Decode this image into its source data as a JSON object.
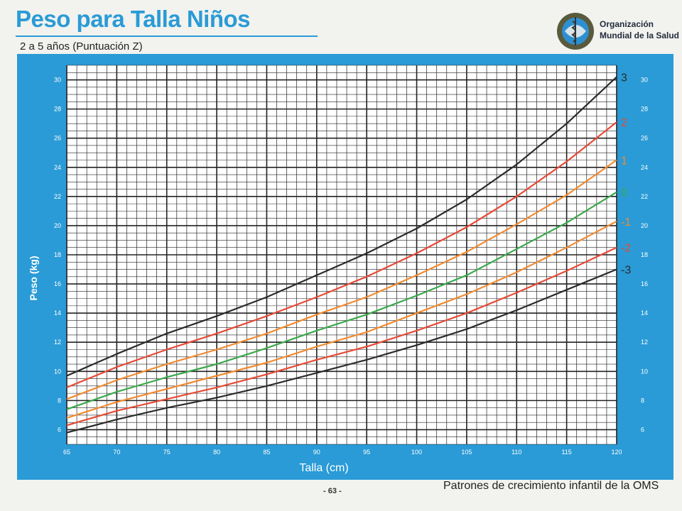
{
  "header": {
    "title": "Peso para Talla Niños",
    "subtitle": "2 a 5 años (Puntuación Z)"
  },
  "organization": {
    "name_line1": "Organización",
    "name_line2": "Mundial de la Salud",
    "emblem_icon": "who-emblem-icon"
  },
  "footer": {
    "page": "- 63 -",
    "source": "Patrones de crecimiento infantil de la OMS"
  },
  "colors": {
    "frame": "#2a9bd6",
    "grid_bg": "#ffffff",
    "grid": "#222222",
    "z3": "#2b2b2b",
    "z2": "#e64a35",
    "z1": "#f28a2e",
    "z0": "#3aa84b"
  },
  "chart_data": {
    "type": "line",
    "xlabel": "Talla (cm)",
    "ylabel": "Peso (kg)",
    "xlim": [
      65,
      120
    ],
    "ylim": [
      5,
      31
    ],
    "x_ticks": [
      65,
      70,
      75,
      80,
      85,
      90,
      95,
      100,
      105,
      110,
      115,
      120
    ],
    "y_ticks": [
      6,
      8,
      10,
      12,
      14,
      16,
      18,
      20,
      22,
      24,
      26,
      28,
      30
    ],
    "grid": true,
    "legend": "right",
    "x": [
      65,
      70,
      75,
      80,
      85,
      90,
      95,
      100,
      105,
      110,
      115,
      120
    ],
    "series": [
      {
        "name": "3",
        "color": "#2b2b2b",
        "values": [
          9.7,
          11.2,
          12.6,
          13.8,
          15.1,
          16.6,
          18.1,
          19.8,
          21.8,
          24.2,
          27.0,
          30.2
        ]
      },
      {
        "name": "2",
        "color": "#e64a35",
        "values": [
          8.9,
          10.3,
          11.5,
          12.6,
          13.8,
          15.1,
          16.5,
          18.1,
          19.9,
          22.0,
          24.4,
          27.1
        ]
      },
      {
        "name": "1",
        "color": "#f28a2e",
        "values": [
          8.1,
          9.4,
          10.5,
          11.5,
          12.6,
          13.9,
          15.1,
          16.6,
          18.2,
          20.1,
          22.1,
          24.5
        ]
      },
      {
        "name": "0",
        "color": "#3aa84b",
        "values": [
          7.4,
          8.6,
          9.6,
          10.5,
          11.6,
          12.8,
          13.9,
          15.2,
          16.6,
          18.4,
          20.2,
          22.3
        ]
      },
      {
        "name": "-1",
        "color": "#f28a2e",
        "values": [
          6.8,
          7.9,
          8.8,
          9.7,
          10.6,
          11.7,
          12.7,
          14.0,
          15.3,
          16.8,
          18.5,
          20.3
        ]
      },
      {
        "name": "-2",
        "color": "#e64a35",
        "values": [
          6.3,
          7.3,
          8.1,
          8.9,
          9.8,
          10.8,
          11.7,
          12.8,
          14.0,
          15.4,
          16.9,
          18.5
        ]
      },
      {
        "name": "-3",
        "color": "#2b2b2b",
        "values": [
          5.8,
          6.7,
          7.5,
          8.2,
          9.0,
          9.9,
          10.8,
          11.8,
          12.9,
          14.2,
          15.6,
          17.0
        ]
      }
    ]
  }
}
